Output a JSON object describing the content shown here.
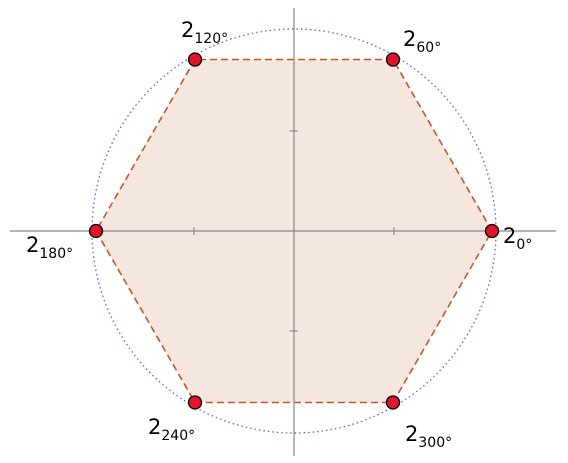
{
  "points": [
    {
      "label": "2",
      "sub": "0°"
    },
    {
      "label": "2",
      "sub": "60°"
    },
    {
      "label": "2",
      "sub": "120°"
    },
    {
      "label": "2",
      "sub": "180°"
    },
    {
      "label": "2",
      "sub": "240°"
    },
    {
      "label": "2",
      "sub": "300°"
    }
  ]
}
